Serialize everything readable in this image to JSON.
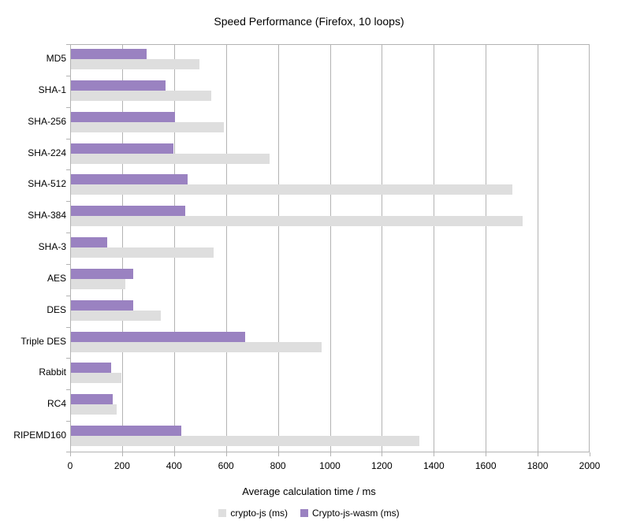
{
  "chart_data": {
    "type": "bar",
    "orientation": "horizontal",
    "title": "Speed Performance (Firefox, 10 loops)",
    "xlabel": "Average calculation time / ms",
    "ylabel": "",
    "categories": [
      "MD5",
      "SHA-1",
      "SHA-256",
      "SHA-224",
      "SHA-512",
      "SHA-384",
      "SHA-3",
      "AES",
      "DES",
      "Triple DES",
      "Rabbit",
      "RC4",
      "RIPEMD160"
    ],
    "series": [
      {
        "name": "crypto-js (ms)",
        "color": "#dedede",
        "values": [
          495,
          540,
          590,
          765,
          1700,
          1740,
          550,
          210,
          345,
          965,
          195,
          175,
          1340
        ]
      },
      {
        "name": "Crypto-js-wasm (ms)",
        "color": "#9a82c1",
        "values": [
          290,
          365,
          400,
          395,
          450,
          440,
          140,
          240,
          240,
          670,
          155,
          160,
          425
        ]
      }
    ],
    "xlim": [
      0,
      2000
    ],
    "xticks": [
      0,
      200,
      400,
      600,
      800,
      1000,
      1200,
      1400,
      1600,
      1800,
      2000
    ],
    "grid": "vertical",
    "gridline_color": "#b3b3b3",
    "background_color": "#ffffff",
    "text_color": "#000000",
    "legend_position": "bottom"
  }
}
